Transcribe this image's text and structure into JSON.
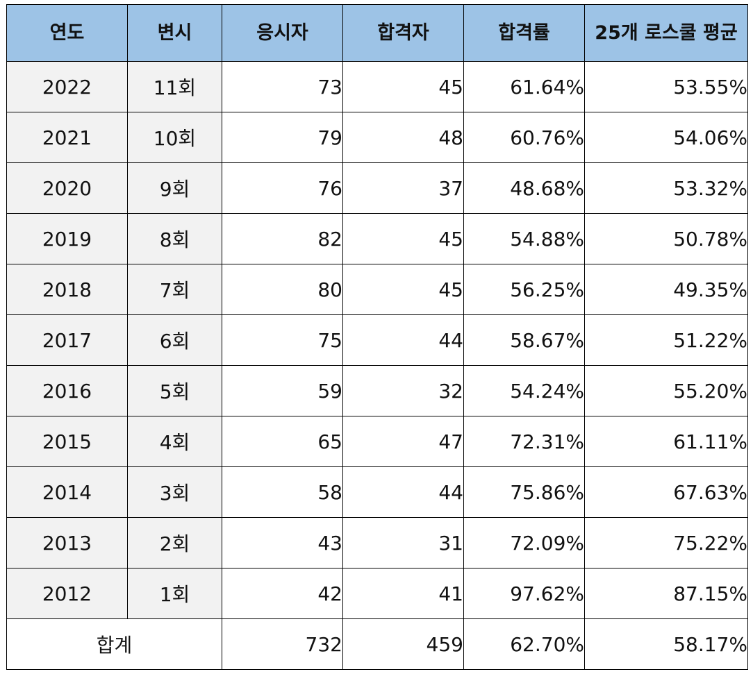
{
  "chart_data": {
    "type": "table",
    "columns": [
      "연도",
      "변시",
      "응시자",
      "합격자",
      "합격률",
      "25개 로스쿨 평균"
    ],
    "rows": [
      {
        "year": "2022",
        "exam": "11회",
        "applicants": "73",
        "passers": "45",
        "pass_rate": "61.64%",
        "avg25": "53.55%"
      },
      {
        "year": "2021",
        "exam": "10회",
        "applicants": "79",
        "passers": "48",
        "pass_rate": "60.76%",
        "avg25": "54.06%"
      },
      {
        "year": "2020",
        "exam": "9회",
        "applicants": "76",
        "passers": "37",
        "pass_rate": "48.68%",
        "avg25": "53.32%"
      },
      {
        "year": "2019",
        "exam": "8회",
        "applicants": "82",
        "passers": "45",
        "pass_rate": "54.88%",
        "avg25": "50.78%"
      },
      {
        "year": "2018",
        "exam": "7회",
        "applicants": "80",
        "passers": "45",
        "pass_rate": "56.25%",
        "avg25": "49.35%"
      },
      {
        "year": "2017",
        "exam": "6회",
        "applicants": "75",
        "passers": "44",
        "pass_rate": "58.67%",
        "avg25": "51.22%"
      },
      {
        "year": "2016",
        "exam": "5회",
        "applicants": "59",
        "passers": "32",
        "pass_rate": "54.24%",
        "avg25": "55.20%"
      },
      {
        "year": "2015",
        "exam": "4회",
        "applicants": "65",
        "passers": "47",
        "pass_rate": "72.31%",
        "avg25": "61.11%"
      },
      {
        "year": "2014",
        "exam": "3회",
        "applicants": "58",
        "passers": "44",
        "pass_rate": "75.86%",
        "avg25": "67.63%"
      },
      {
        "year": "2013",
        "exam": "2회",
        "applicants": "43",
        "passers": "31",
        "pass_rate": "72.09%",
        "avg25": "75.22%"
      },
      {
        "year": "2012",
        "exam": "1회",
        "applicants": "42",
        "passers": "41",
        "pass_rate": "97.62%",
        "avg25": "87.15%"
      }
    ],
    "total": {
      "label": "합계",
      "applicants": "732",
      "passers": "459",
      "pass_rate": "62.70%",
      "avg25": "58.17%"
    }
  },
  "colors": {
    "header_background": "#9dc3e6",
    "shaded_cell_background": "#f2f2f2",
    "border": "#000000"
  }
}
